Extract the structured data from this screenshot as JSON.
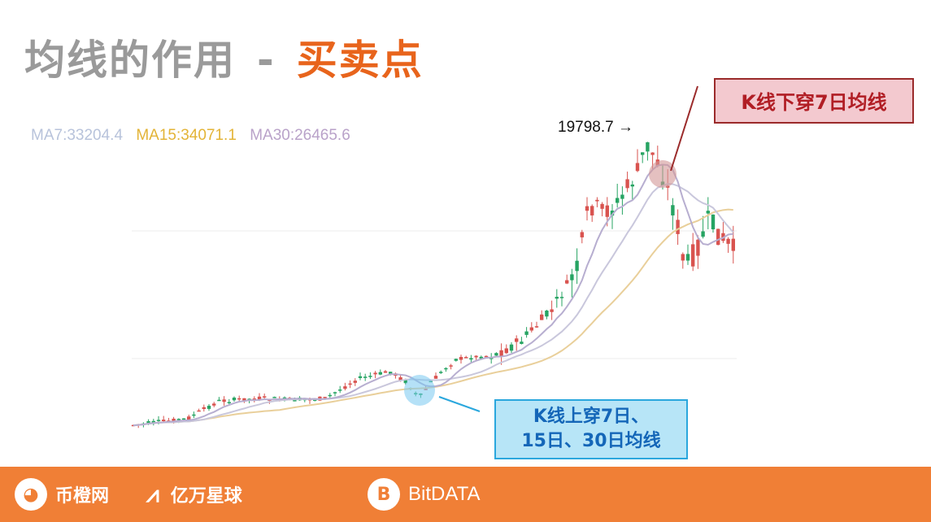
{
  "slide": {
    "title_part1": "均线的作用",
    "title_dash": "-",
    "title_part2": "买卖点"
  },
  "chart_data": {
    "type": "candlestick",
    "ma_legend": [
      {
        "label": "MA7:33204.4",
        "color": "#b8c3db"
      },
      {
        "label": "MA15:34071.1",
        "color": "#e3b437"
      },
      {
        "label": "MA30:26465.6",
        "color": "#b9a2c9"
      }
    ],
    "peak_annotation": "19798.7 →",
    "callout_sell": "K线下穿7日均线",
    "callout_buy": [
      "K线上穿7日、",
      "15日、30日均线"
    ],
    "colors": {
      "up": "#27a463",
      "down": "#d9534f",
      "ma7": "#c9c7dc",
      "ma15": "#e9cf9a",
      "ma30": "#b7aed0"
    }
  },
  "footer": {
    "logo1_symbol": "◕",
    "logo1_text": "币橙网",
    "logo2_symbol": "⩘",
    "logo2_text": "亿万星球",
    "logo3_symbol": "B",
    "logo3_text": "BitDATA"
  }
}
